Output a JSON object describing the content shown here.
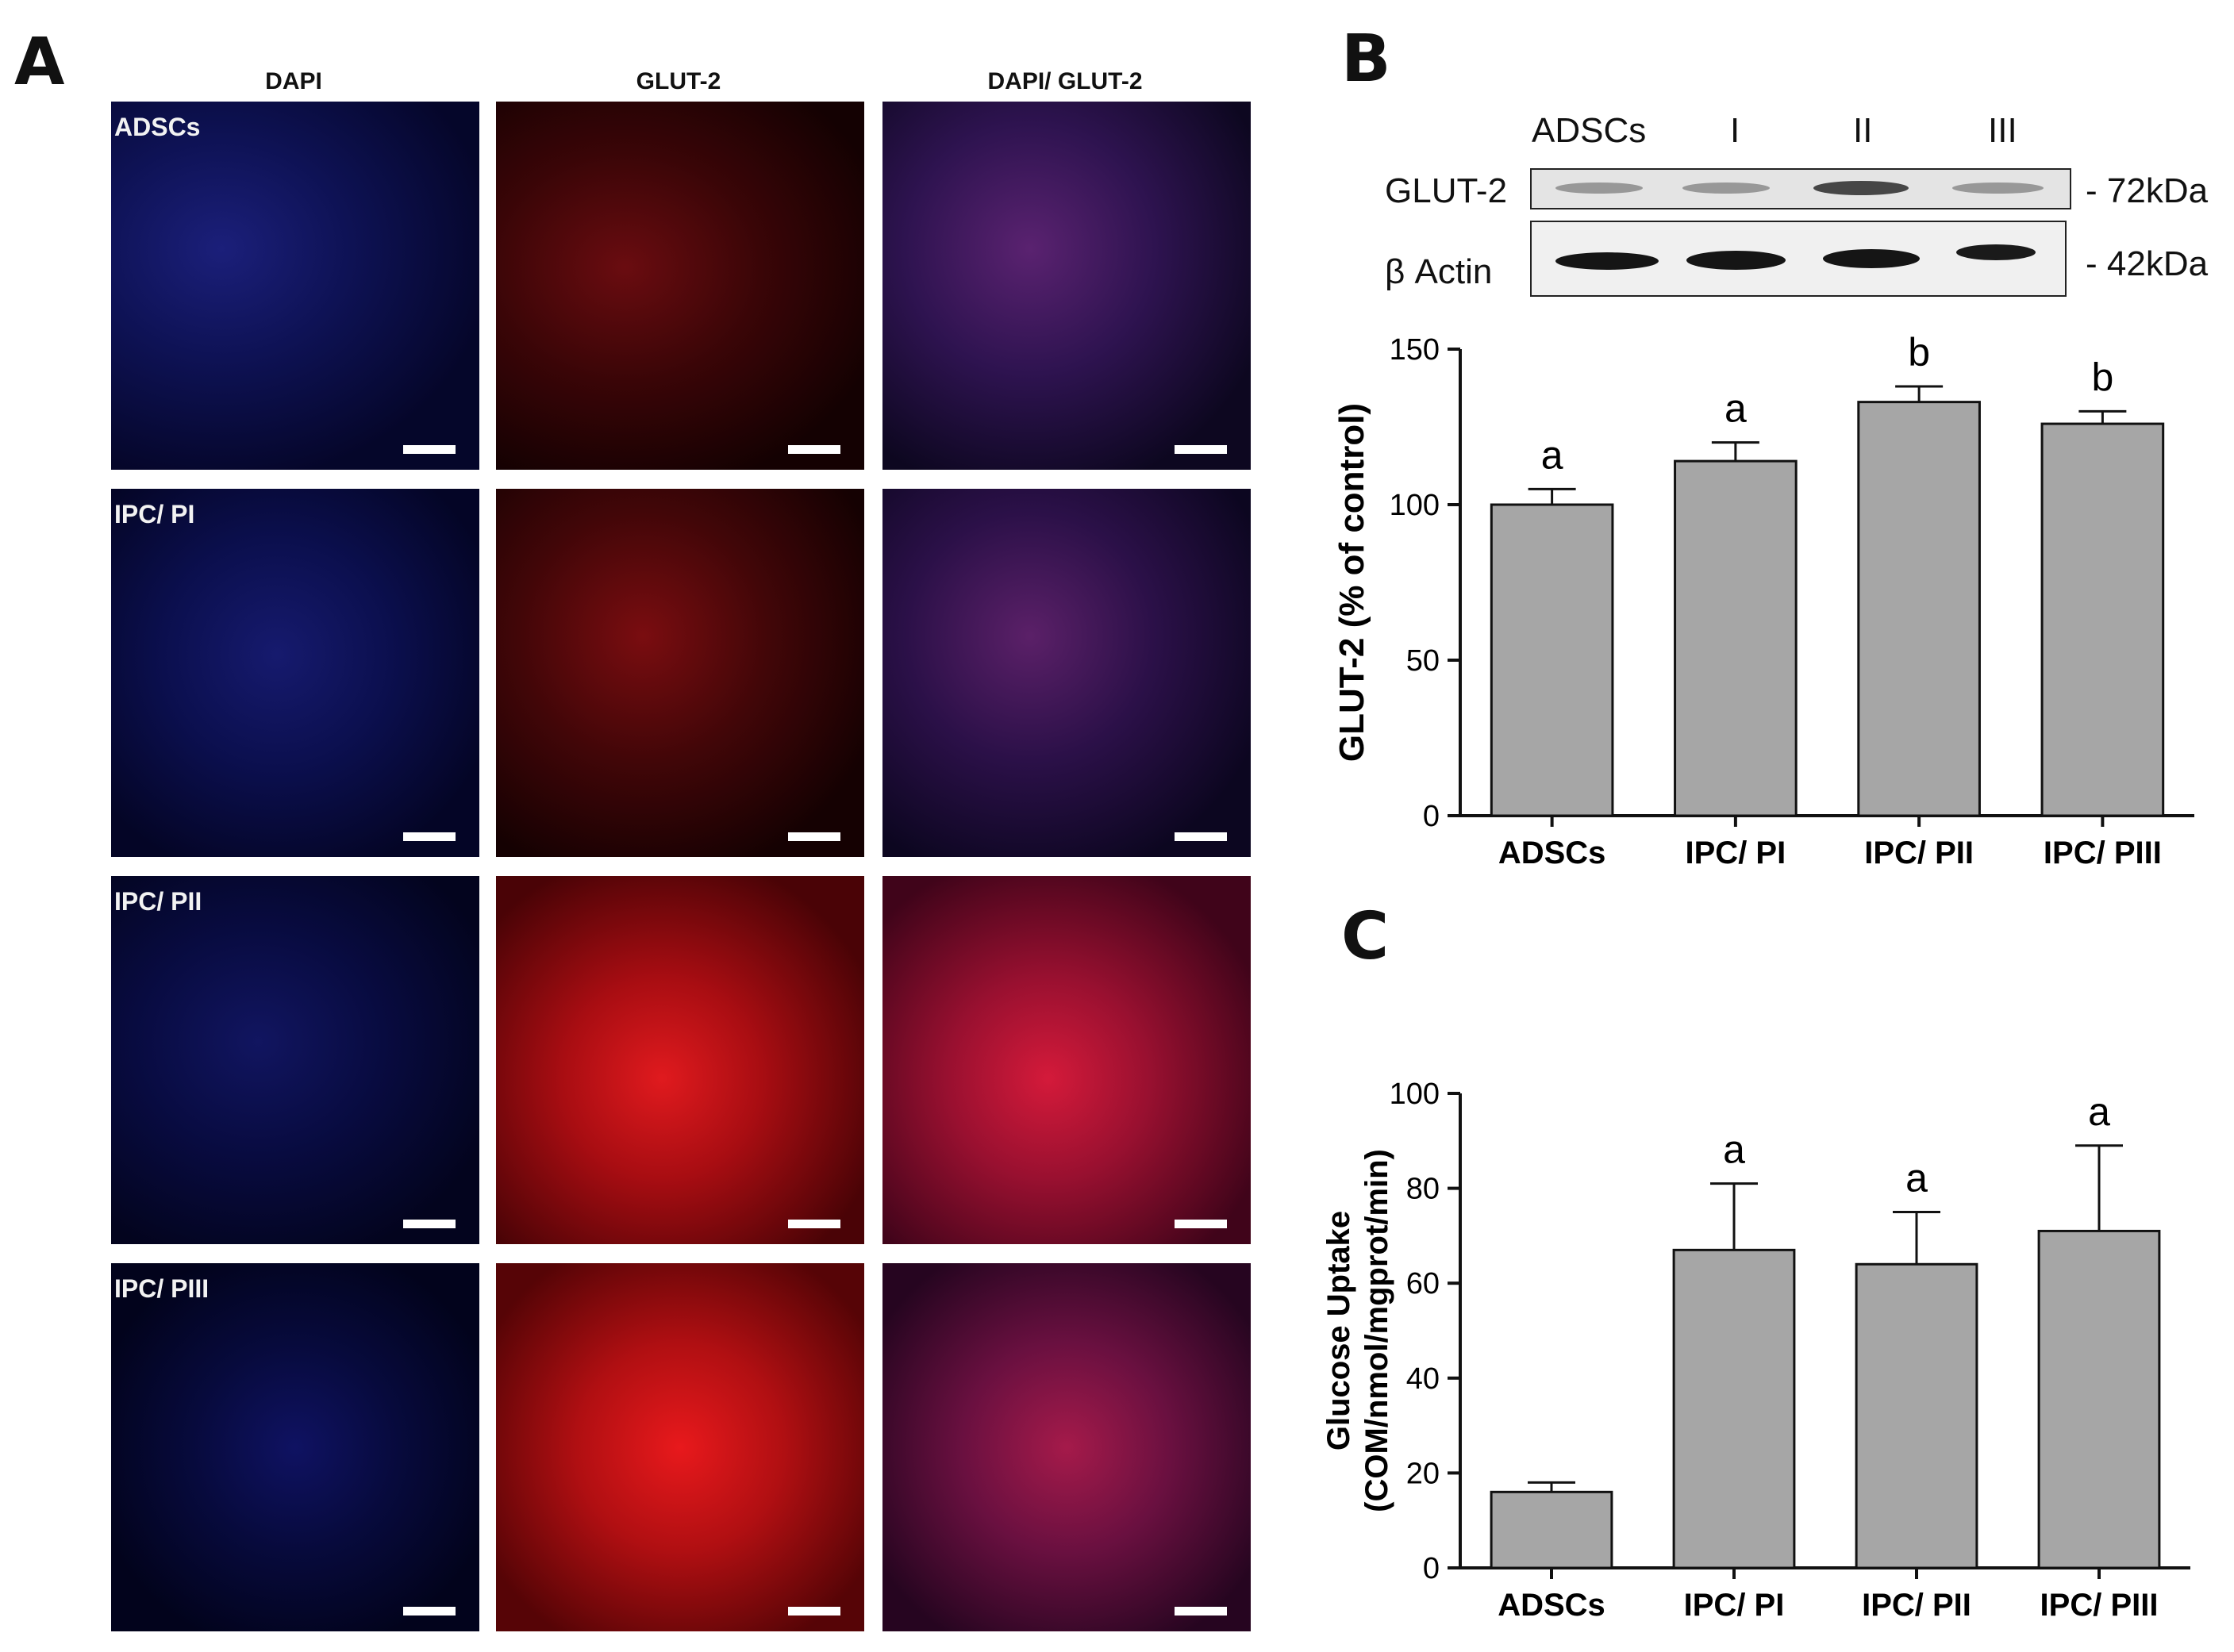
{
  "panel_a": {
    "letter": "A",
    "column_headers": [
      "DAPI",
      "GLUT-2",
      "DAPI/ GLUT-2"
    ],
    "row_labels": [
      "ADSCs",
      "IPC/ PI",
      "IPC/ PII",
      "IPC/ PIII"
    ]
  },
  "panel_b": {
    "letter": "B",
    "blot": {
      "lane_labels": [
        "ADSCs",
        "I",
        "II",
        "III"
      ],
      "row_labels": [
        "GLUT-2",
        "β Actin"
      ],
      "markers": [
        "- 72kDa",
        "- 42kDa"
      ]
    }
  },
  "panel_c": {
    "letter": "C"
  },
  "chart_data": [
    {
      "type": "bar",
      "categories": [
        "ADSCs",
        "IPC/ PI",
        "IPC/ PII",
        "IPC/ PIII"
      ],
      "values": [
        100,
        114,
        133,
        126
      ],
      "error": [
        5,
        6,
        5,
        4
      ],
      "annotations": [
        "a",
        "a",
        "b",
        "b"
      ],
      "ylabel": "GLUT-2 (% of control)",
      "ylim": [
        0,
        150
      ],
      "yticks": [
        0,
        50,
        100,
        150
      ],
      "bar_color": "#a6a6a6"
    },
    {
      "type": "bar",
      "categories": [
        "ADSCs",
        "IPC/ PI",
        "IPC/ PII",
        "IPC/ PIII"
      ],
      "values": [
        16,
        67,
        64,
        71
      ],
      "error": [
        2,
        14,
        11,
        18
      ],
      "annotations": [
        "",
        "a",
        "a",
        "a"
      ],
      "ylabel_lines": [
        "Glucose Uptake",
        "(COM/nmol/mgprot/min)"
      ],
      "ylim": [
        0,
        100
      ],
      "yticks": [
        0,
        20,
        40,
        60,
        80,
        100
      ],
      "bar_color": "#a6a6a6"
    }
  ]
}
